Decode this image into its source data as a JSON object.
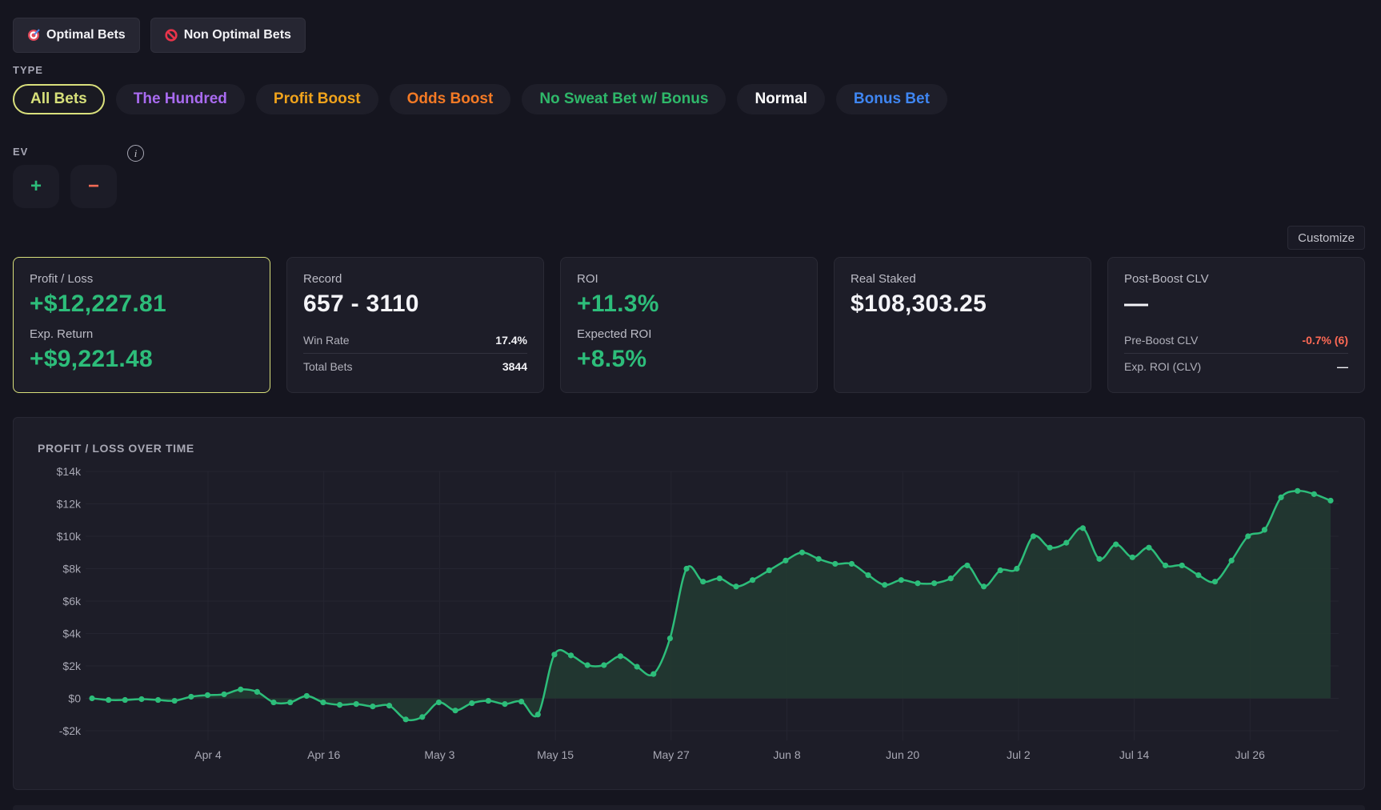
{
  "filters": {
    "optimal_label": "Optimal Bets",
    "non_optimal_label": "Non Optimal Bets"
  },
  "type_section": {
    "label": "TYPE",
    "pills": [
      {
        "label": "All Bets",
        "color": "#d7e07a",
        "active": true
      },
      {
        "label": "The Hundred",
        "color": "#a96bf0",
        "active": false
      },
      {
        "label": "Profit Boost",
        "color": "#f0a31c",
        "active": false
      },
      {
        "label": "Odds Boost",
        "color": "#f47a25",
        "active": false
      },
      {
        "label": "No Sweat Bet w/ Bonus",
        "color": "#2fb86a",
        "active": false
      },
      {
        "label": "Normal",
        "color": "#ffffff",
        "active": false
      },
      {
        "label": "Bonus Bet",
        "color": "#3f86f2",
        "active": false
      }
    ]
  },
  "ev_section": {
    "label": "EV",
    "info": "i",
    "plus": "+",
    "minus": "−",
    "plus_color": "#2dbd7a",
    "minus_color": "#f26a55"
  },
  "customize_label": "Customize",
  "cards": {
    "profit": {
      "title": "Profit / Loss",
      "value": "+$12,227.81",
      "sub_title": "Exp. Return",
      "sub_value": "+$9,221.48"
    },
    "record": {
      "title": "Record",
      "value": "657 - 3110",
      "win_rate_label": "Win Rate",
      "win_rate": "17.4%",
      "total_label": "Total Bets",
      "total": "3844"
    },
    "roi": {
      "title": "ROI",
      "value": "+11.3%",
      "sub_title": "Expected ROI",
      "sub_value": "+8.5%"
    },
    "staked": {
      "title": "Real Staked",
      "value": "$108,303.25"
    },
    "clv": {
      "title": "Post-Boost CLV",
      "value": "—",
      "pre_label": "Pre-Boost CLV",
      "pre_value": "-0.7% (6)",
      "exp_label": "Exp. ROI (CLV)",
      "exp_value": "—"
    }
  },
  "chart_title": "PROFIT / LOSS OVER TIME",
  "chart_data": {
    "type": "area",
    "title": "PROFIT / LOSS OVER TIME",
    "xlabel": "",
    "ylabel": "",
    "ylim": [
      -2000,
      14000
    ],
    "y_ticks": [
      -2000,
      0,
      2000,
      4000,
      6000,
      8000,
      10000,
      12000,
      14000
    ],
    "y_tick_labels": [
      "-$2k",
      "$0",
      "$2k",
      "$4k",
      "$6k",
      "$8k",
      "$10k",
      "$12k",
      "$14k"
    ],
    "x_ticks": [
      "Apr 4",
      "Apr 16",
      "May 3",
      "May 15",
      "May 27",
      "Jun 8",
      "Jun 20",
      "Jul 2",
      "Jul 14",
      "Jul 26"
    ],
    "line_color": "#2dbd7a",
    "fill_color": "#223a31",
    "series": [
      {
        "values": [
          0,
          -100,
          -100,
          -50,
          -100,
          -150,
          100,
          200,
          250,
          550,
          400,
          -250,
          -250,
          150,
          -250,
          -400,
          -350,
          -500,
          -450,
          -1300,
          -1150,
          -250,
          -750,
          -300,
          -150,
          -350,
          -200,
          -1000,
          2700,
          2650,
          2050,
          2050,
          2600,
          1950,
          1500,
          3700,
          8000,
          7200,
          7400,
          6900,
          7300,
          7900,
          8500,
          9000,
          8600,
          8300,
          8300,
          7600,
          7000,
          7300,
          7100,
          7100,
          7400,
          8200,
          6900,
          7900,
          8000,
          10000,
          9300,
          9600,
          10500,
          8600,
          9500,
          8700,
          9300,
          8200,
          8200,
          7600,
          7200,
          8500,
          10000,
          10400,
          12400,
          12800,
          12600,
          12200
        ]
      }
    ]
  }
}
